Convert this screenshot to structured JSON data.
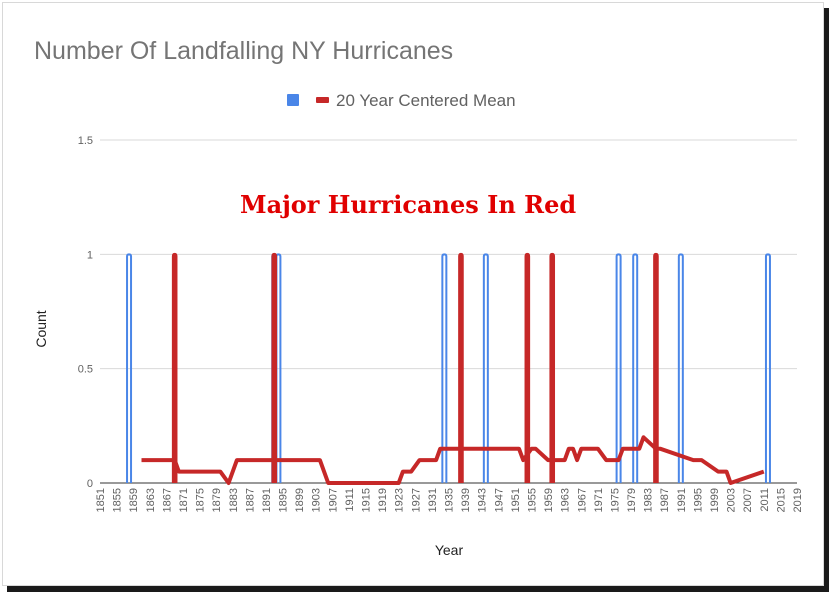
{
  "chart_data": {
    "type": "line",
    "title": "Number Of Landfalling NY Hurricanes",
    "xlabel": "Year",
    "ylabel": "Count",
    "annotation": "Major Hurricanes In Red",
    "xlim": [
      1851,
      2019
    ],
    "ylim": [
      0,
      1.5
    ],
    "yticks": [
      "0",
      "0.5",
      "1",
      "1.5"
    ],
    "xticks": [
      "1851",
      "1855",
      "1859",
      "1863",
      "1867",
      "1871",
      "1875",
      "1879",
      "1883",
      "1887",
      "1891",
      "1895",
      "1899",
      "1903",
      "1907",
      "1911",
      "1915",
      "1919",
      "1923",
      "1927",
      "1931",
      "1935",
      "1939",
      "1943",
      "1947",
      "1951",
      "1955",
      "1959",
      "1963",
      "1967",
      "1971",
      "1975",
      "1979",
      "1983",
      "1987",
      "1991",
      "1995",
      "1999",
      "2003",
      "2007",
      "2011",
      "2015",
      "2019"
    ],
    "grid": true,
    "legend_position": "top",
    "series": [
      {
        "name": "",
        "color": "#4a86e8",
        "style": "spikes",
        "years": [
          1858,
          1893,
          1894,
          1934,
          1944,
          1976,
          1980,
          1991,
          2012
        ],
        "values": [
          1,
          1,
          1,
          1,
          1,
          1,
          1,
          1,
          1
        ]
      },
      {
        "name": "",
        "color": "#c62828",
        "style": "spikes",
        "years": [
          1869,
          1893,
          1938,
          1954,
          1960,
          1985
        ],
        "values": [
          1,
          1,
          1,
          1,
          1,
          1
        ]
      },
      {
        "name": "20 Year Centered Mean",
        "color": "#c62828",
        "style": "line",
        "x": [
          1861,
          1869,
          1870,
          1880,
          1882,
          1884,
          1904,
          1906,
          1923,
          1924,
          1926,
          1928,
          1932,
          1933,
          1952,
          1953,
          1955,
          1956,
          1959,
          1963,
          1964,
          1965,
          1966,
          1967,
          1971,
          1973,
          1976,
          1977,
          1981,
          1982,
          1985,
          1986,
          1994,
          1996,
          2000,
          2001,
          2002,
          2003,
          2011
        ],
        "y": [
          0.1,
          0.1,
          0.05,
          0.05,
          0,
          0.1,
          0.1,
          0,
          0,
          0.05,
          0.05,
          0.1,
          0.1,
          0.15,
          0.15,
          0.1,
          0.15,
          0.15,
          0.1,
          0.1,
          0.15,
          0.15,
          0.1,
          0.15,
          0.15,
          0.1,
          0.1,
          0.15,
          0.15,
          0.2,
          0.15,
          0.15,
          0.1,
          0.1,
          0.05,
          0.05,
          0.05,
          0,
          0.05
        ]
      }
    ]
  },
  "legend": {
    "label": "20 Year Centered Mean",
    "square_color": "#4a86e8",
    "line_color": "#c62828"
  }
}
